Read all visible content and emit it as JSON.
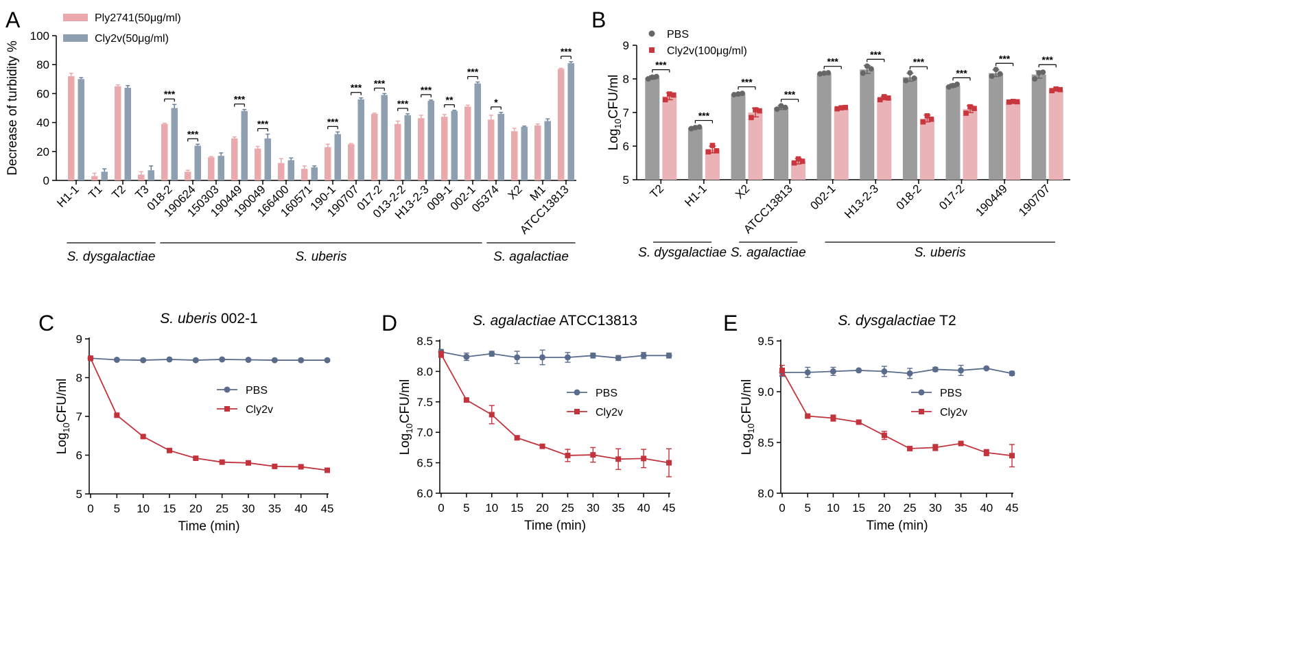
{
  "colors": {
    "ply": "#eaa9ad",
    "cly_a": "#8d9fb1",
    "cly_a_dark": "#6e8296",
    "pbs_b": "#9c9c9c",
    "pbs_b_dot": "#666666",
    "cly_b": "#eab3b8",
    "cly_b_dot": "#c9363e",
    "pbs_line": "#5a6c8c",
    "cly_line": "#c3333c",
    "axis": "#000000"
  },
  "chart_data": [
    {
      "panel": "A",
      "type": "bar",
      "ylabel": "Decrease of turbidity %",
      "ylim": [
        0,
        100
      ],
      "yticks": [
        0,
        20,
        40,
        60,
        80,
        100
      ],
      "categories": [
        "H1-1",
        "T1",
        "T2",
        "T3",
        "018-2",
        "190624",
        "150303",
        "190449",
        "190049",
        "166400",
        "160571",
        "190-1",
        "190707",
        "017-2",
        "013-2-2",
        "H13-2-3",
        "009-1",
        "002-1",
        "05374",
        "X2",
        "M1",
        "ATCC13813"
      ],
      "series": [
        {
          "name": "Ply2741(50μg/ml)",
          "values": [
            72,
            3,
            65,
            4,
            39,
            6,
            16,
            29,
            22,
            12,
            8,
            23,
            25,
            46,
            39,
            43,
            44,
            51,
            42,
            34,
            38,
            77
          ],
          "errors": [
            2,
            2,
            1,
            2,
            0.5,
            1,
            0.5,
            1,
            1.5,
            3,
            2,
            2,
            0.5,
            0.5,
            2,
            2,
            1.5,
            1,
            3,
            2,
            1,
            0.5
          ]
        },
        {
          "name": "Cly2v(50μg/ml)",
          "values": [
            70,
            6,
            64,
            7,
            50,
            24,
            17,
            48,
            29,
            14,
            9,
            32,
            56,
            59,
            45,
            55,
            48,
            67,
            46,
            37,
            41,
            81
          ],
          "errors": [
            1,
            2,
            1.5,
            3,
            2.5,
            1,
            2,
            1,
            3,
            1.5,
            1,
            1.5,
            1,
            1,
            1,
            0.5,
            0.5,
            1,
            1,
            0.5,
            1.5,
            1
          ]
        }
      ],
      "significance": [
        {
          "category": "018-2",
          "label": "***"
        },
        {
          "category": "190624",
          "label": "***"
        },
        {
          "category": "190449",
          "label": "***"
        },
        {
          "category": "190049",
          "label": "***"
        },
        {
          "category": "190-1",
          "label": "***"
        },
        {
          "category": "190707",
          "label": "***"
        },
        {
          "category": "017-2",
          "label": "***"
        },
        {
          "category": "013-2-2",
          "label": "***"
        },
        {
          "category": "H13-2-3",
          "label": "***"
        },
        {
          "category": "009-1",
          "label": "**"
        },
        {
          "category": "002-1",
          "label": "***"
        },
        {
          "category": "05374",
          "label": "*"
        },
        {
          "category": "ATCC13813",
          "label": "***"
        }
      ],
      "groups": [
        {
          "label": "S. dysgalactiae",
          "from": "H1-1",
          "to": "T3"
        },
        {
          "label": "S. uberis",
          "from": "018-2",
          "to": "002-1"
        },
        {
          "label": "S. agalactiae",
          "from": "05374",
          "to": "ATCC13813"
        }
      ]
    },
    {
      "panel": "B",
      "type": "bar",
      "ylabel_main": "Log",
      "ylabel_sub": "10",
      "ylabel_tail": "CFU/ml",
      "ylim": [
        5,
        9
      ],
      "yticks": [
        5,
        6,
        7,
        8,
        9
      ],
      "categories": [
        "T2",
        "H1-1",
        "X2",
        "ATCC13813",
        "002-1",
        "H13-2-3",
        "018-2",
        "017-2",
        "190449",
        "190707"
      ],
      "series": [
        {
          "name": "PBS",
          "values": [
            8.04,
            6.55,
            7.55,
            7.15,
            8.17,
            8.28,
            8.05,
            7.8,
            8.17,
            8.13
          ],
          "errors": [
            0.05,
            0.03,
            0.03,
            0.06,
            0.02,
            0.12,
            0.12,
            0.05,
            0.1,
            0.11
          ],
          "points": [
            [
              8.0,
              8.05,
              8.07
            ],
            [
              6.52,
              6.55,
              6.57
            ],
            [
              7.53,
              7.55,
              7.57
            ],
            [
              7.1,
              7.2,
              7.15
            ],
            [
              8.15,
              8.17,
              8.18
            ],
            [
              8.17,
              8.38,
              8.3
            ],
            [
              7.95,
              8.18,
              8.02
            ],
            [
              7.76,
              7.8,
              7.84
            ],
            [
              8.08,
              8.28,
              8.15
            ],
            [
              8.0,
              8.18,
              8.2
            ]
          ]
        },
        {
          "name": "Cly2v(100μg/ml)",
          "values": [
            7.48,
            5.9,
            7.0,
            5.55,
            7.13,
            7.43,
            6.82,
            7.1,
            7.32,
            7.68
          ],
          "errors": [
            0.1,
            0.1,
            0.13,
            0.08,
            0.04,
            0.05,
            0.1,
            0.1,
            0.02,
            0.03
          ],
          "points": [
            [
              7.38,
              7.55,
              7.52
            ],
            [
              5.83,
              6.02,
              5.86
            ],
            [
              6.85,
              7.08,
              7.05
            ],
            [
              5.5,
              5.62,
              5.55
            ],
            [
              7.11,
              7.14,
              7.15
            ],
            [
              7.38,
              7.47,
              7.43
            ],
            [
              6.72,
              6.9,
              6.8
            ],
            [
              6.98,
              7.17,
              7.12
            ],
            [
              7.31,
              7.33,
              7.32
            ],
            [
              7.65,
              7.7,
              7.68
            ]
          ]
        }
      ],
      "significance": [
        "***",
        "***",
        "***",
        "***",
        "***",
        "***",
        "***",
        "***",
        "***",
        "***"
      ],
      "groups": [
        {
          "label": "S. dysgalactiae",
          "from": "T2",
          "to": "H1-1"
        },
        {
          "label": "S. agalactiae",
          "from": "X2",
          "to": "ATCC13813"
        },
        {
          "label": "S. uberis",
          "from": "002-1",
          "to": "190707"
        }
      ]
    },
    {
      "panel": "C",
      "type": "line",
      "title_italic": "S. uberis",
      "title_rest": " 002-1",
      "xlabel": "Time (min)",
      "ylim": [
        5,
        9
      ],
      "yticks": [
        "5",
        "6",
        "7",
        "8",
        "9"
      ],
      "x": [
        0,
        5,
        10,
        15,
        20,
        25,
        30,
        35,
        40,
        45
      ],
      "series": [
        {
          "name": "PBS",
          "values": [
            8.5,
            8.46,
            8.45,
            8.47,
            8.45,
            8.47,
            8.46,
            8.45,
            8.45,
            8.45
          ],
          "errors": [
            0.04,
            0.02,
            0.02,
            0.02,
            0.02,
            0.02,
            0.02,
            0.02,
            0.02,
            0.02
          ]
        },
        {
          "name": "Cly2v",
          "values": [
            8.5,
            7.03,
            6.48,
            6.12,
            5.92,
            5.82,
            5.8,
            5.71,
            5.7,
            5.61
          ],
          "errors": [
            0.04,
            0.03,
            0.03,
            0.02,
            0.02,
            0.02,
            0.02,
            0.02,
            0.02,
            0.02
          ]
        }
      ]
    },
    {
      "panel": "D",
      "type": "line",
      "title_italic": "S. agalactiae",
      "title_rest": " ATCC13813",
      "xlabel": "Time (min)",
      "ylim": [
        6.0,
        8.5
      ],
      "yticks": [
        "6.0",
        "6.5",
        "7.0",
        "7.5",
        "8.0",
        "8.5"
      ],
      "x": [
        0,
        5,
        10,
        15,
        20,
        25,
        30,
        35,
        40,
        45
      ],
      "series": [
        {
          "name": "PBS",
          "values": [
            8.32,
            8.24,
            8.29,
            8.23,
            8.23,
            8.23,
            8.26,
            8.22,
            8.26,
            8.26
          ],
          "errors": [
            0.04,
            0.06,
            0.04,
            0.1,
            0.12,
            0.08,
            0.04,
            0.04,
            0.05,
            0.04
          ]
        },
        {
          "name": "Cly2v",
          "values": [
            8.28,
            7.53,
            7.29,
            6.91,
            6.77,
            6.62,
            6.63,
            6.56,
            6.57,
            6.5
          ],
          "errors": [
            0.05,
            0.02,
            0.15,
            0.02,
            0.02,
            0.1,
            0.12,
            0.17,
            0.15,
            0.23
          ]
        }
      ]
    },
    {
      "panel": "E",
      "type": "line",
      "title_italic": "S. dysgalactiae",
      "title_rest": " T2",
      "xlabel": "Time (min)",
      "ylim": [
        8.0,
        9.5
      ],
      "yticks": [
        "8.0",
        "8.5",
        "9.0",
        "9.5"
      ],
      "x": [
        0,
        5,
        10,
        15,
        20,
        25,
        30,
        35,
        40,
        45
      ],
      "series": [
        {
          "name": "PBS",
          "values": [
            9.19,
            9.19,
            9.2,
            9.21,
            9.2,
            9.18,
            9.22,
            9.21,
            9.23,
            9.18
          ],
          "errors": [
            0.04,
            0.05,
            0.04,
            0.01,
            0.05,
            0.05,
            0.02,
            0.05,
            0.01,
            0.02
          ]
        },
        {
          "name": "Cly2v",
          "values": [
            9.21,
            8.76,
            8.74,
            8.7,
            8.57,
            8.44,
            8.45,
            8.49,
            8.4,
            8.37
          ],
          "errors": [
            0.05,
            0.01,
            0.03,
            0.01,
            0.04,
            0.01,
            0.03,
            0.01,
            0.03,
            0.11
          ]
        }
      ]
    }
  ]
}
